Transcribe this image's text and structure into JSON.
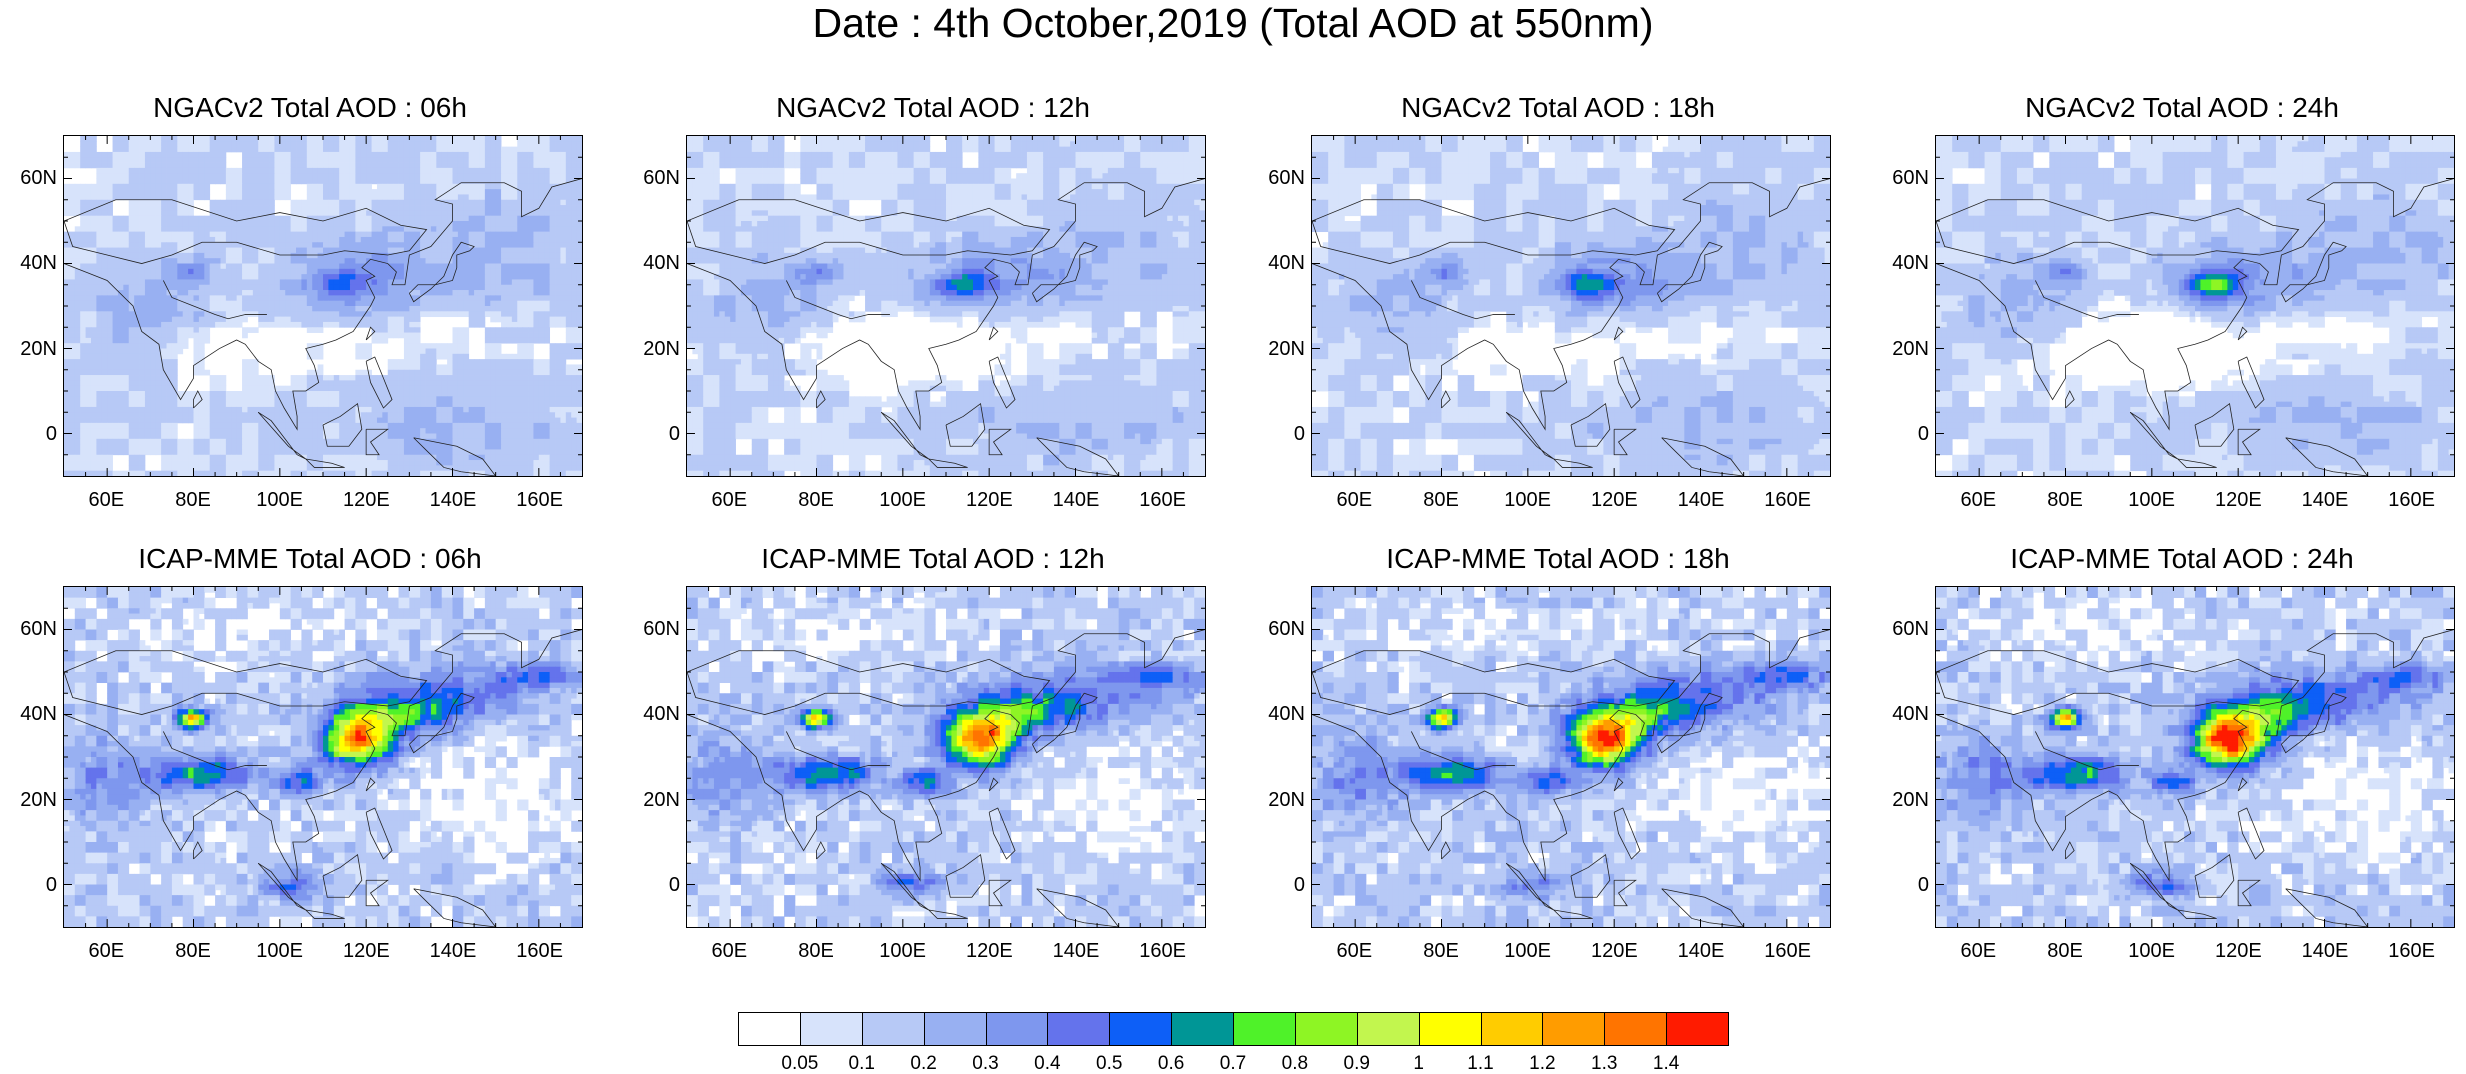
{
  "title": "Date : 4th October,2019 (Total AOD at 550nm)",
  "chart_data": [
    {
      "type": "heatmap",
      "title": "NGACv2 Total AOD : 06h",
      "model": "ngac",
      "xticks": [
        "60E",
        "80E",
        "100E",
        "120E",
        "140E",
        "160E"
      ],
      "yticks": [
        "60N",
        "40N",
        "20N",
        "0"
      ],
      "xlim": [
        50,
        170
      ],
      "ylim": [
        -10,
        70
      ]
    },
    {
      "type": "heatmap",
      "title": "NGACv2 Total AOD : 12h",
      "model": "ngac",
      "xticks": [
        "60E",
        "80E",
        "100E",
        "120E",
        "140E",
        "160E"
      ],
      "yticks": [
        "60N",
        "40N",
        "20N",
        "0"
      ],
      "xlim": [
        50,
        170
      ],
      "ylim": [
        -10,
        70
      ]
    },
    {
      "type": "heatmap",
      "title": "NGACv2 Total AOD : 18h",
      "model": "ngac",
      "xticks": [
        "60E",
        "80E",
        "100E",
        "120E",
        "140E",
        "160E"
      ],
      "yticks": [
        "60N",
        "40N",
        "20N",
        "0"
      ],
      "xlim": [
        50,
        170
      ],
      "ylim": [
        -10,
        70
      ]
    },
    {
      "type": "heatmap",
      "title": "NGACv2 Total AOD : 24h",
      "model": "ngac",
      "xticks": [
        "60E",
        "80E",
        "100E",
        "120E",
        "140E",
        "160E"
      ],
      "yticks": [
        "60N",
        "40N",
        "20N",
        "0"
      ],
      "xlim": [
        50,
        170
      ],
      "ylim": [
        -10,
        70
      ]
    },
    {
      "type": "heatmap",
      "title": "ICAP-MME Total AOD : 06h",
      "model": "icap",
      "xticks": [
        "60E",
        "80E",
        "100E",
        "120E",
        "140E",
        "160E"
      ],
      "yticks": [
        "60N",
        "40N",
        "20N",
        "0"
      ],
      "xlim": [
        50,
        170
      ],
      "ylim": [
        -10,
        70
      ]
    },
    {
      "type": "heatmap",
      "title": "ICAP-MME Total AOD : 12h",
      "model": "icap",
      "xticks": [
        "60E",
        "80E",
        "100E",
        "120E",
        "140E",
        "160E"
      ],
      "yticks": [
        "60N",
        "40N",
        "20N",
        "0"
      ],
      "xlim": [
        50,
        170
      ],
      "ylim": [
        -10,
        70
      ]
    },
    {
      "type": "heatmap",
      "title": "ICAP-MME Total AOD : 18h",
      "model": "icap",
      "xticks": [
        "60E",
        "80E",
        "100E",
        "120E",
        "140E",
        "160E"
      ],
      "yticks": [
        "60N",
        "40N",
        "20N",
        "0"
      ],
      "xlim": [
        50,
        170
      ],
      "ylim": [
        -10,
        70
      ]
    },
    {
      "type": "heatmap",
      "title": "ICAP-MME Total AOD : 24h",
      "model": "icap",
      "xticks": [
        "60E",
        "80E",
        "100E",
        "120E",
        "140E",
        "160E"
      ],
      "yticks": [
        "60N",
        "40N",
        "20N",
        "0"
      ],
      "xlim": [
        50,
        170
      ],
      "ylim": [
        -10,
        70
      ]
    }
  ],
  "colorbar": {
    "labels": [
      "0.05",
      "0.1",
      "0.2",
      "0.3",
      "0.4",
      "0.5",
      "0.6",
      "0.7",
      "0.8",
      "0.9",
      "1",
      "1.1",
      "1.2",
      "1.3",
      "1.4"
    ],
    "colors": [
      "#ffffff",
      "#d7e3fb",
      "#b7c9f6",
      "#98b0f2",
      "#7e97ee",
      "#6473ec",
      "#0d5ff7",
      "#009696",
      "#4ff229",
      "#8ef524",
      "#c2f64e",
      "#ffff00",
      "#ffcc00",
      "#ff9c00",
      "#ff7400",
      "#ff1b00"
    ]
  }
}
